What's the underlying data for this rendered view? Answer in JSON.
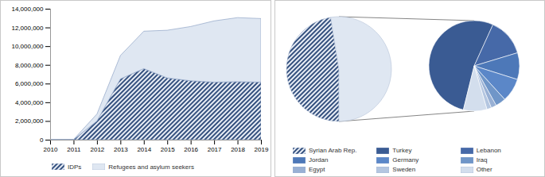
{
  "chart_data": [
    {
      "type": "area",
      "stacked": true,
      "x": [
        2010,
        2011,
        2012,
        2013,
        2014,
        2015,
        2016,
        2017,
        2018,
        2019
      ],
      "series": [
        {
          "name": "IDPs",
          "color": "#34507e",
          "line_style": "hatched",
          "values": [
            0,
            0,
            2000000,
            6500000,
            7600000,
            6600000,
            6300000,
            6150000,
            6200000,
            6150000
          ]
        },
        {
          "name": "Refugees and asylum seekers",
          "color": "#dfe7f2",
          "values": [
            0,
            20000,
            750000,
            2500000,
            4000000,
            5100000,
            5800000,
            6550000,
            6850000,
            6800000
          ]
        }
      ],
      "xlim": [
        2010,
        2019
      ],
      "xticks": [
        2010,
        2011,
        2012,
        2013,
        2014,
        2015,
        2016,
        2017,
        2018,
        2019
      ],
      "ylim": [
        0,
        14000000
      ],
      "yticks": [
        0,
        {
          "value": 2000000,
          "label": "2,000,000"
        },
        {
          "value": 4000000,
          "label": "4,000,000"
        },
        {
          "value": 6000000,
          "label": "6,000,000"
        },
        {
          "value": 8000000,
          "label": "8,000,000"
        },
        {
          "value": 10000000,
          "label": "10,000,000"
        },
        {
          "value": 12000000,
          "label": "12,000,000"
        },
        {
          "value": 14000000,
          "label": "14,000,000"
        }
      ],
      "legend": "bottom"
    },
    {
      "type": "pie",
      "series": [
        {
          "name": "Syrian Arab Rep.",
          "color": "#34507e",
          "line_style": "hatched",
          "values": [
            6150000
          ]
        },
        {
          "name": null,
          "color": "#dfe7f2",
          "values": [
            6800000
          ]
        }
      ],
      "legend": "bottom"
    },
    {
      "type": "pie",
      "categories": [
        "Turkey",
        "Lebanon",
        "Jordan",
        "Germany",
        "Iraq",
        "Egypt",
        "Sweden",
        "Other"
      ],
      "values": [
        3600000,
        920000,
        650000,
        570000,
        250000,
        130000,
        110000,
        570000
      ],
      "colors": [
        "#3a5b93",
        "#4669a8",
        "#4d78b8",
        "#5b87c8",
        "#7096c8",
        "#98b0d4",
        "#b4c6e0",
        "#d3deed"
      ],
      "legend": "bottom"
    }
  ]
}
